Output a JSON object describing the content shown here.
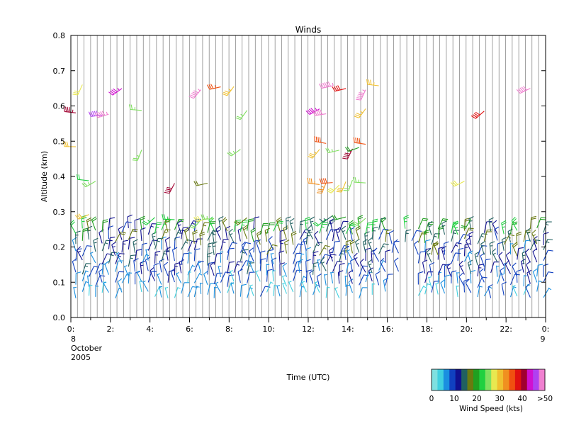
{
  "chart_data": {
    "type": "wind-barb",
    "title": "Winds",
    "xlabel": "Time (UTC)",
    "ylabel": "Altitude (km)",
    "xlim": [
      0,
      24
    ],
    "ylim": [
      0.0,
      0.8
    ],
    "x_ticks": [
      {
        "value": 0,
        "label": "0:"
      },
      {
        "value": 2,
        "label": "2:"
      },
      {
        "value": 4,
        "label": "4:"
      },
      {
        "value": 6,
        "label": "6:"
      },
      {
        "value": 8,
        "label": "8:"
      },
      {
        "value": 10,
        "label": "10:"
      },
      {
        "value": 12,
        "label": "12:"
      },
      {
        "value": 14,
        "label": "14:"
      },
      {
        "value": 16,
        "label": "16:"
      },
      {
        "value": 18,
        "label": "18:"
      },
      {
        "value": 20,
        "label": "20:"
      },
      {
        "value": 22,
        "label": "22:"
      },
      {
        "value": 24,
        "label": "0:"
      }
    ],
    "y_ticks": [
      {
        "value": 0.0,
        "label": "0.0"
      },
      {
        "value": 0.1,
        "label": "0.1"
      },
      {
        "value": 0.2,
        "label": "0.2"
      },
      {
        "value": 0.3,
        "label": "0.3"
      },
      {
        "value": 0.4,
        "label": "0.4"
      },
      {
        "value": 0.5,
        "label": "0.5"
      },
      {
        "value": 0.6,
        "label": "0.6"
      },
      {
        "value": 0.7,
        "label": "0.7"
      },
      {
        "value": 0.8,
        "label": "0.8"
      }
    ],
    "date_labels": {
      "start_day": "8",
      "month": "October",
      "year": "2005",
      "end_day": "9"
    },
    "profile_interval_hours": 0.333,
    "colorbar": {
      "label": "Wind Speed (kts)",
      "tick_labels": [
        "0",
        "10",
        "20",
        "30",
        "40",
        ">50"
      ],
      "colors": [
        "#7fe0e0",
        "#40d0e0",
        "#1a8fe0",
        "#1040c0",
        "#101090",
        "#206060",
        "#6a7a10",
        "#20a020",
        "#20d040",
        "#80e060",
        "#e8e850",
        "#f0c030",
        "#f09020",
        "#f05010",
        "#e01010",
        "#a00030",
        "#d010d0",
        "#b040f0",
        "#f080d0"
      ]
    },
    "series_levels": [
      {
        "altitude_km": 0.08,
        "speed_kts": 6
      },
      {
        "altitude_km": 0.11,
        "speed_kts": 8
      },
      {
        "altitude_km": 0.14,
        "speed_kts": 10
      },
      {
        "altitude_km": 0.17,
        "speed_kts": 11
      },
      {
        "altitude_km": 0.2,
        "speed_kts": 12
      },
      {
        "altitude_km": 0.23,
        "speed_kts": 14
      },
      {
        "altitude_km": 0.26,
        "speed_kts": 17
      },
      {
        "altitude_km": 0.3,
        "speed_kts": 21
      },
      {
        "altitude_km": 0.4,
        "speed_kts": 30
      },
      {
        "altitude_km": 0.5,
        "speed_kts": 34
      },
      {
        "altitude_km": 0.6,
        "speed_kts": 38
      },
      {
        "altitude_km": 0.67,
        "speed_kts": 45
      }
    ]
  }
}
